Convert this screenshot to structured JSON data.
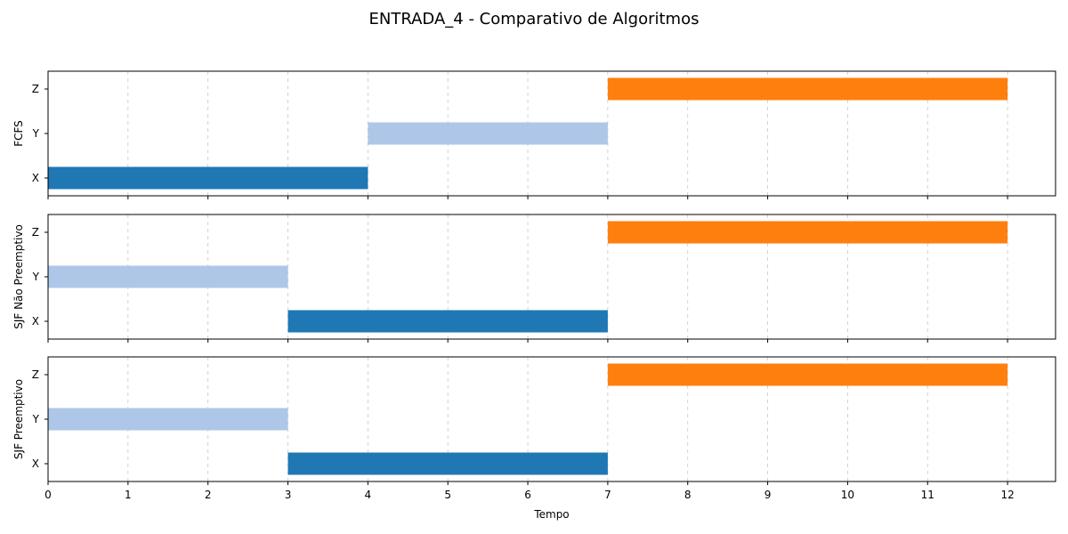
{
  "chart_data": {
    "type": "bar",
    "orientation": "horizontal-gantt",
    "title": "ENTRADA_4 - Comparativo de Algoritmos",
    "xlabel": "Tempo",
    "xlim": [
      0,
      12.6
    ],
    "xticks": [
      0,
      1,
      2,
      3,
      4,
      5,
      6,
      7,
      8,
      9,
      10,
      11,
      12
    ],
    "grid": "vertical dashed",
    "processes": [
      "X",
      "Y",
      "Z"
    ],
    "colors": {
      "X": "#1f77b4",
      "Y": "#aec7e8",
      "Z": "#ff7f0e"
    },
    "panels": [
      {
        "ylabel": "FCFS",
        "bars": [
          {
            "process": "X",
            "start": 0,
            "end": 4
          },
          {
            "process": "Y",
            "start": 4,
            "end": 7
          },
          {
            "process": "Z",
            "start": 7,
            "end": 12
          }
        ]
      },
      {
        "ylabel": "SJF Não Preemptivo",
        "bars": [
          {
            "process": "X",
            "start": 3,
            "end": 7
          },
          {
            "process": "Y",
            "start": 0,
            "end": 3
          },
          {
            "process": "Z",
            "start": 7,
            "end": 12
          }
        ]
      },
      {
        "ylabel": "SJF Preemptivo",
        "bars": [
          {
            "process": "X",
            "start": 3,
            "end": 7
          },
          {
            "process": "Y",
            "start": 0,
            "end": 3
          },
          {
            "process": "Z",
            "start": 7,
            "end": 12
          }
        ]
      }
    ]
  }
}
